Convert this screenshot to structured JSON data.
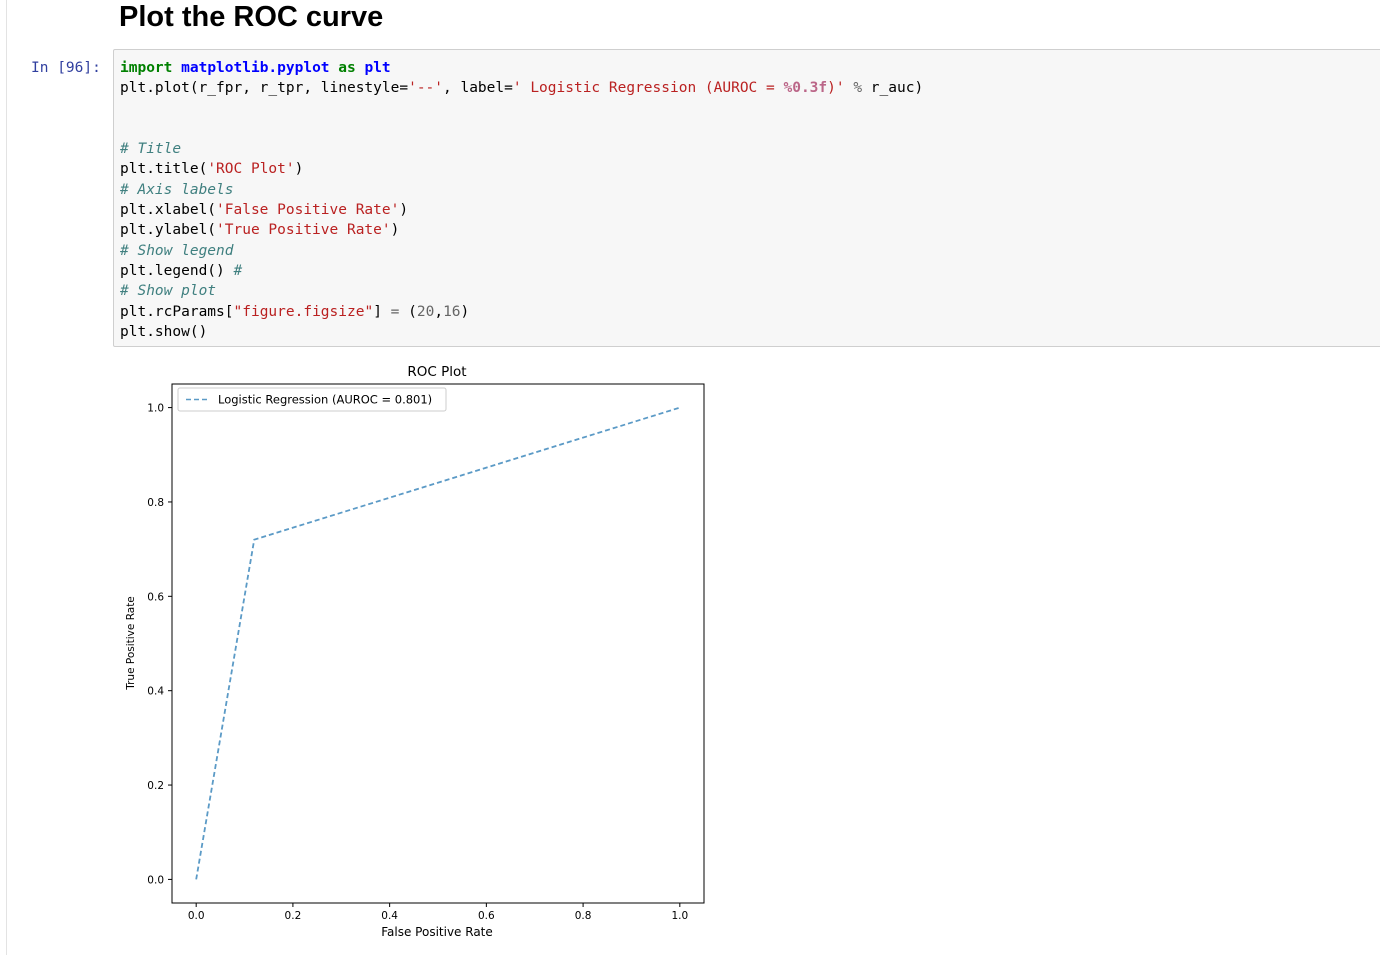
{
  "markdown": {
    "heading": "Plot the ROC curve"
  },
  "cell": {
    "prompt": "In [96]:",
    "code_lines": [
      [
        {
          "t": "import",
          "c": "kw"
        },
        {
          "t": " ",
          "c": ""
        },
        {
          "t": "matplotlib.pyplot",
          "c": "nn"
        },
        {
          "t": " ",
          "c": ""
        },
        {
          "t": "as",
          "c": "kw"
        },
        {
          "t": " ",
          "c": ""
        },
        {
          "t": "plt",
          "c": "nn"
        }
      ],
      [
        {
          "t": "plt.plot(r_fpr, r_tpr, linestyle=",
          "c": ""
        },
        {
          "t": "'--'",
          "c": "str"
        },
        {
          "t": ", label=",
          "c": ""
        },
        {
          "t": "' Logistic Regression (AUROC = ",
          "c": "str"
        },
        {
          "t": "%0.3f",
          "c": "sint"
        },
        {
          "t": ")'",
          "c": "str"
        },
        {
          "t": " ",
          "c": ""
        },
        {
          "t": "%",
          "c": "op"
        },
        {
          "t": " r_auc)",
          "c": ""
        }
      ],
      [],
      [],
      [
        {
          "t": "# Title",
          "c": "cm"
        }
      ],
      [
        {
          "t": "plt.title(",
          "c": ""
        },
        {
          "t": "'ROC Plot'",
          "c": "str"
        },
        {
          "t": ")",
          "c": ""
        }
      ],
      [
        {
          "t": "# Axis labels",
          "c": "cm"
        }
      ],
      [
        {
          "t": "plt.xlabel(",
          "c": ""
        },
        {
          "t": "'False Positive Rate'",
          "c": "str"
        },
        {
          "t": ")",
          "c": ""
        }
      ],
      [
        {
          "t": "plt.ylabel(",
          "c": ""
        },
        {
          "t": "'True Positive Rate'",
          "c": "str"
        },
        {
          "t": ")",
          "c": ""
        }
      ],
      [
        {
          "t": "# Show legend",
          "c": "cm"
        }
      ],
      [
        {
          "t": "plt.legend() ",
          "c": ""
        },
        {
          "t": "#",
          "c": "cm"
        }
      ],
      [
        {
          "t": "# Show plot",
          "c": "cm"
        }
      ],
      [
        {
          "t": "plt.rcParams[",
          "c": ""
        },
        {
          "t": "\"figure.figsize\"",
          "c": "str"
        },
        {
          "t": "] ",
          "c": ""
        },
        {
          "t": "=",
          "c": "op"
        },
        {
          "t": " (",
          "c": ""
        },
        {
          "t": "20",
          "c": "num"
        },
        {
          "t": ",",
          "c": ""
        },
        {
          "t": "16",
          "c": "num"
        },
        {
          "t": ")",
          "c": ""
        }
      ],
      [
        {
          "t": "plt.show()",
          "c": ""
        }
      ]
    ]
  },
  "chart_data": {
    "type": "line",
    "title": "ROC Plot",
    "xlabel": "False Positive Rate",
    "ylabel": "True Positive Rate",
    "xlim": [
      -0.05,
      1.05
    ],
    "ylim": [
      -0.05,
      1.05
    ],
    "xticks": [
      "0.0",
      "0.2",
      "0.4",
      "0.6",
      "0.8",
      "1.0"
    ],
    "yticks": [
      "0.0",
      "0.2",
      "0.4",
      "0.6",
      "0.8",
      "1.0"
    ],
    "xtick_values": [
      0,
      0.2,
      0.4,
      0.6,
      0.8,
      1.0
    ],
    "ytick_values": [
      0,
      0.2,
      0.4,
      0.6,
      0.8,
      1.0
    ],
    "grid": false,
    "legend_position": "top-left",
    "series": [
      {
        "name": "Logistic Regression (AUROC = 0.801)",
        "x": [
          0.0,
          0.12,
          1.0
        ],
        "y": [
          0.0,
          0.72,
          1.0
        ],
        "color": "#5b9ac6",
        "linestyle": "dashed"
      }
    ]
  }
}
